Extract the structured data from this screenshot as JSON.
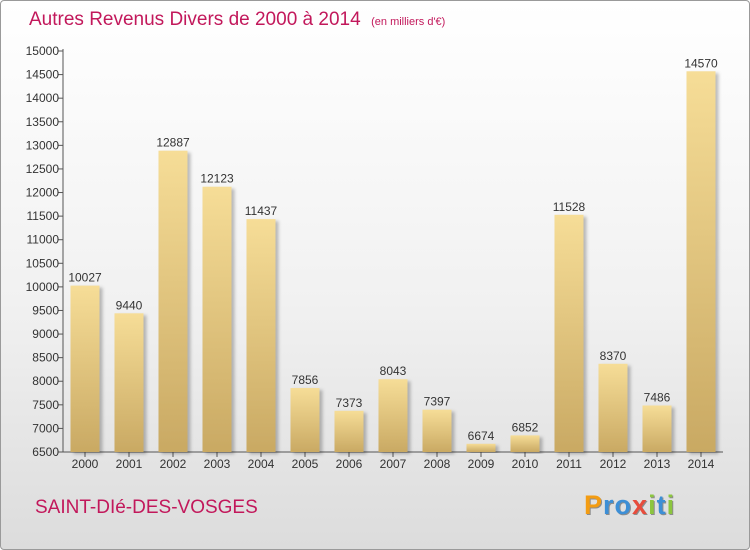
{
  "chart_data": {
    "type": "bar",
    "title": "Autres Revenus Divers de 2000 à 2014",
    "subtitle": "(en milliers d'€)",
    "categories": [
      "2000",
      "2001",
      "2002",
      "2003",
      "2004",
      "2005",
      "2006",
      "2007",
      "2008",
      "2009",
      "2010",
      "2011",
      "2012",
      "2013",
      "2014"
    ],
    "values": [
      10027,
      9440,
      12887,
      12123,
      11437,
      7856,
      7373,
      8043,
      7397,
      6674,
      6852,
      11528,
      8370,
      7486,
      14570
    ],
    "ylim": [
      6500,
      15000
    ],
    "yticks": [
      6500,
      7000,
      7500,
      8000,
      8500,
      9000,
      9500,
      10000,
      10500,
      11000,
      11500,
      12000,
      12500,
      13000,
      13500,
      14000,
      14500,
      15000
    ],
    "xlabel": "",
    "ylabel": "",
    "grid": false,
    "bar_color": "#e8d089",
    "title_color": "#c2185b"
  },
  "footer": {
    "city": "SAINT-DIé-DES-VOSGES",
    "brand_letters": [
      "P",
      "r",
      "o",
      "x",
      "i",
      "t",
      "i"
    ],
    "brand_colors": [
      "#f39c12",
      "#3d8fd6",
      "#3d8fd6",
      "#e74c3c",
      "#8cc63f",
      "#3d8fd6",
      "#8cc63f"
    ]
  }
}
